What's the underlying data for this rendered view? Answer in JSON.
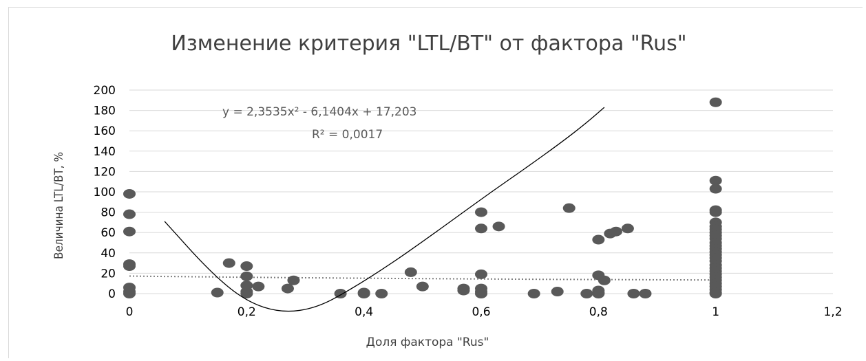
{
  "chart_data": {
    "type": "scatter",
    "title": "Изменение критерия \"LTL/BT\" от фактора \"Rus\"",
    "xlabel": "Доля фактора \"Rus\"",
    "ylabel": "Величина LTL/BT, %",
    "xlim": [
      0,
      1.2
    ],
    "ylim": [
      0,
      200
    ],
    "x_ticks": [
      "0",
      "0,2",
      "0,4",
      "0,6",
      "0,8",
      "1",
      "1,2"
    ],
    "y_ticks": [
      "0",
      "20",
      "40",
      "60",
      "80",
      "100",
      "120",
      "140",
      "160",
      "180",
      "200"
    ],
    "grid": "horizontal",
    "trendline": {
      "type": "polynomial",
      "equation": "y = 2,3535x² - 6,1404x + 17,203",
      "r_squared": "R² = 0,0017",
      "coefficients": [
        2.3535,
        -6.1404,
        17.203
      ],
      "style": "dotted"
    },
    "freehand_curve_points": [
      [
        0.06,
        71
      ],
      [
        0.14,
        20
      ],
      [
        0.2,
        -8
      ],
      [
        0.26,
        -19
      ],
      [
        0.32,
        -14
      ],
      [
        0.38,
        5
      ],
      [
        0.44,
        27
      ],
      [
        0.5,
        51
      ],
      [
        0.56,
        76
      ],
      [
        0.62,
        101
      ],
      [
        0.68,
        125
      ],
      [
        0.74,
        150
      ],
      [
        0.78,
        168
      ],
      [
        0.81,
        183
      ]
    ],
    "points": [
      [
        0,
        98
      ],
      [
        0,
        78
      ],
      [
        0,
        61
      ],
      [
        0,
        29
      ],
      [
        0,
        27
      ],
      [
        0,
        6
      ],
      [
        0,
        2
      ],
      [
        0,
        0
      ],
      [
        0.15,
        1
      ],
      [
        0.17,
        30
      ],
      [
        0.2,
        27
      ],
      [
        0.2,
        17
      ],
      [
        0.2,
        8
      ],
      [
        0.2,
        2
      ],
      [
        0.2,
        0
      ],
      [
        0.22,
        7
      ],
      [
        0.27,
        5
      ],
      [
        0.28,
        13
      ],
      [
        0.36,
        0
      ],
      [
        0.4,
        1
      ],
      [
        0.4,
        0
      ],
      [
        0.43,
        0
      ],
      [
        0.48,
        21
      ],
      [
        0.5,
        7
      ],
      [
        0.57,
        5
      ],
      [
        0.57,
        3
      ],
      [
        0.6,
        80
      ],
      [
        0.6,
        64
      ],
      [
        0.6,
        19
      ],
      [
        0.6,
        5
      ],
      [
        0.6,
        2
      ],
      [
        0.6,
        0
      ],
      [
        0.63,
        66
      ],
      [
        0.69,
        0
      ],
      [
        0.73,
        2
      ],
      [
        0.75,
        84
      ],
      [
        0.78,
        0
      ],
      [
        0.8,
        53
      ],
      [
        0.8,
        18
      ],
      [
        0.8,
        3
      ],
      [
        0.8,
        1
      ],
      [
        0.8,
        0
      ],
      [
        0.81,
        13
      ],
      [
        0.82,
        59
      ],
      [
        0.83,
        61
      ],
      [
        0.85,
        64
      ],
      [
        0.86,
        0
      ],
      [
        0.88,
        0
      ],
      [
        1,
        188
      ],
      [
        1,
        111
      ],
      [
        1,
        103
      ],
      [
        1,
        82
      ],
      [
        1,
        80
      ],
      [
        1,
        70
      ],
      [
        1,
        66
      ],
      [
        1,
        63
      ],
      [
        1,
        60
      ],
      [
        1,
        57
      ],
      [
        1,
        54
      ],
      [
        1,
        50
      ],
      [
        1,
        47
      ],
      [
        1,
        44
      ],
      [
        1,
        41
      ],
      [
        1,
        38
      ],
      [
        1,
        35
      ],
      [
        1,
        32
      ],
      [
        1,
        28
      ],
      [
        1,
        25
      ],
      [
        1,
        22
      ],
      [
        1,
        19
      ],
      [
        1,
        16
      ],
      [
        1,
        13
      ],
      [
        1,
        10
      ],
      [
        1,
        7
      ],
      [
        1,
        4
      ],
      [
        1,
        1
      ],
      [
        1,
        0
      ]
    ],
    "colors": {
      "marker": "#595959",
      "grid": "#d9d9d9",
      "trend": "#7f7f7f",
      "curve": "#000000"
    }
  }
}
